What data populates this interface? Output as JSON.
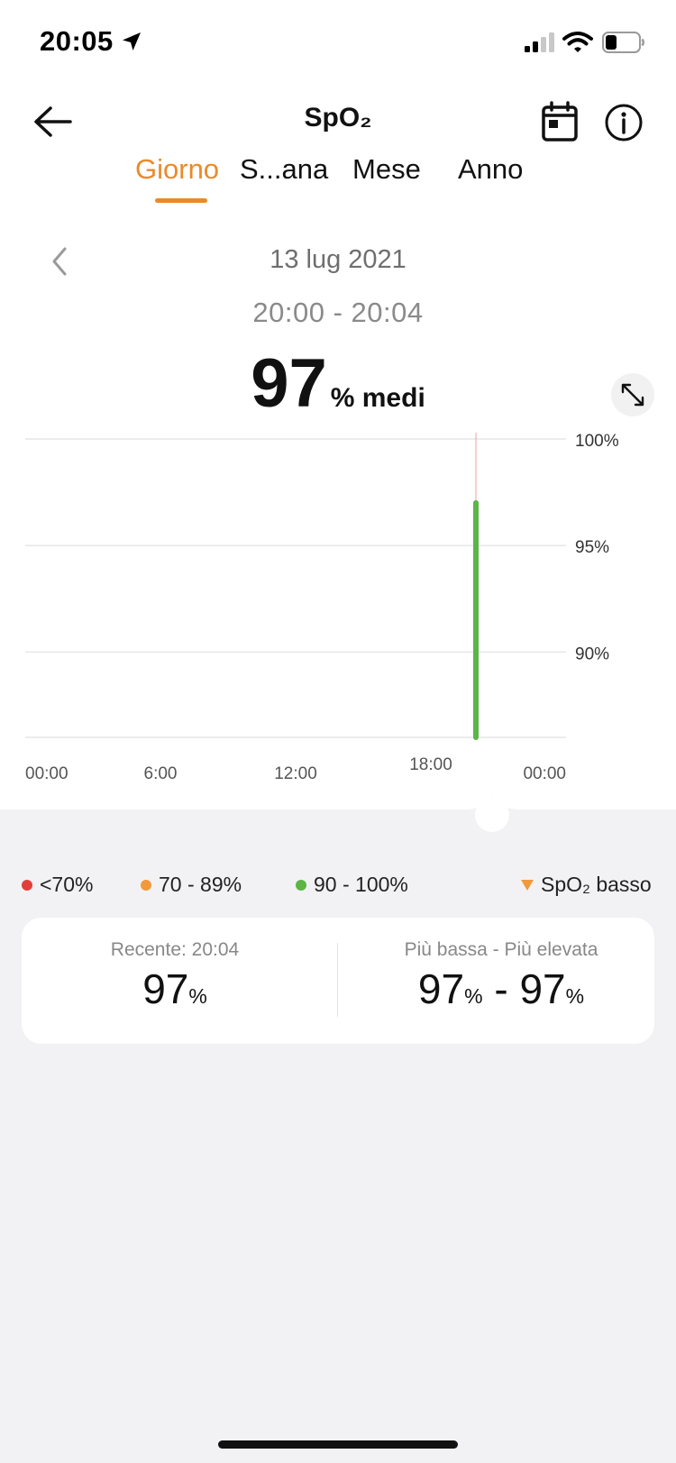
{
  "status_bar": {
    "time": "20:05",
    "icons": [
      "location-arrow-icon",
      "cellular-signal-icon",
      "wifi-icon",
      "battery-icon"
    ]
  },
  "header": {
    "title": "SpO₂",
    "icons": [
      "back-arrow-icon",
      "calendar-icon",
      "info-icon"
    ]
  },
  "tabs": [
    {
      "label": "Giorno",
      "active": true
    },
    {
      "label": "S...ana",
      "active": false
    },
    {
      "label": "Mese",
      "active": false
    },
    {
      "label": "Anno",
      "active": false
    }
  ],
  "date_nav": {
    "date": "13 lug 2021",
    "time_range": "20:00 - 20:04"
  },
  "summary": {
    "value": "97",
    "unit": "% medi"
  },
  "chart_data": {
    "type": "bar",
    "x_tick_labels": [
      "00:00",
      "6:00",
      "12:00",
      "18:00",
      "00:00"
    ],
    "y_tick_labels": [
      "100%",
      "95%",
      "90%"
    ],
    "ylim": [
      86,
      100
    ],
    "grid": true,
    "bars": [
      {
        "x_hours": 20.0,
        "low": 86,
        "high": 97,
        "color": "#5cb546"
      }
    ],
    "cursor_x_hours": 20.0
  },
  "legend": [
    {
      "label": "<70%",
      "color": "#e0403c",
      "shape": "dot"
    },
    {
      "label": "70 - 89%",
      "color": "#f09a3c",
      "shape": "dot"
    },
    {
      "label": "90 - 100%",
      "color": "#5cb546",
      "shape": "dot"
    },
    {
      "label": "SpO₂ basso",
      "color": "#f09a3c",
      "shape": "triangle"
    }
  ],
  "stats": {
    "recent_label": "Recente: 20:04",
    "recent_value": "97",
    "recent_unit": "%",
    "range_label": "Più bassa - Più elevata",
    "min_value": "97",
    "min_unit": "%",
    "range_separator": "-",
    "max_value": "97",
    "max_unit": "%"
  },
  "colors": {
    "accent": "#ea8a2a",
    "bar_green": "#5cb546",
    "bottom_bg": "#f2f2f4"
  }
}
